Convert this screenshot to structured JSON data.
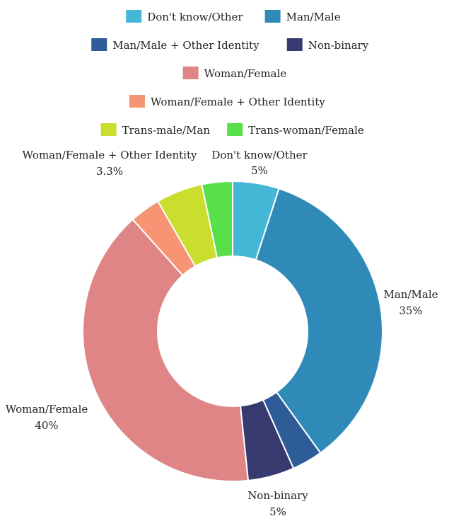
{
  "chart_data": {
    "type": "pie",
    "donut": true,
    "legend_position": "top",
    "categories": [
      "Don't know/Other",
      "Man/Male",
      "Man/Male + Other Identity",
      "Non-binary",
      "Woman/Female",
      "Woman/Female + Other Identity",
      "Trans-male/Man",
      "Trans-woman/Female"
    ],
    "values": [
      5,
      35,
      3.3,
      5,
      40,
      3.3,
      5,
      3.3
    ],
    "colors": [
      "#45b7d6",
      "#2f8ab8",
      "#2e5c99",
      "#363a6e",
      "#e08585",
      "#f79474",
      "#cade2e",
      "#57e04a"
    ],
    "slice_labels": [
      {
        "name": "Don't know/Other",
        "value": "5%"
      },
      {
        "name": "Man/Male",
        "value": "35%"
      },
      {
        "name": "",
        "value": ""
      },
      {
        "name": "Non-binary",
        "value": "5%"
      },
      {
        "name": "Woman/Female",
        "value": "40%"
      },
      {
        "name": "Woman/Female + Other Identity",
        "value": "3.3%"
      },
      {
        "name": "",
        "value": ""
      },
      {
        "name": "",
        "value": ""
      }
    ]
  }
}
